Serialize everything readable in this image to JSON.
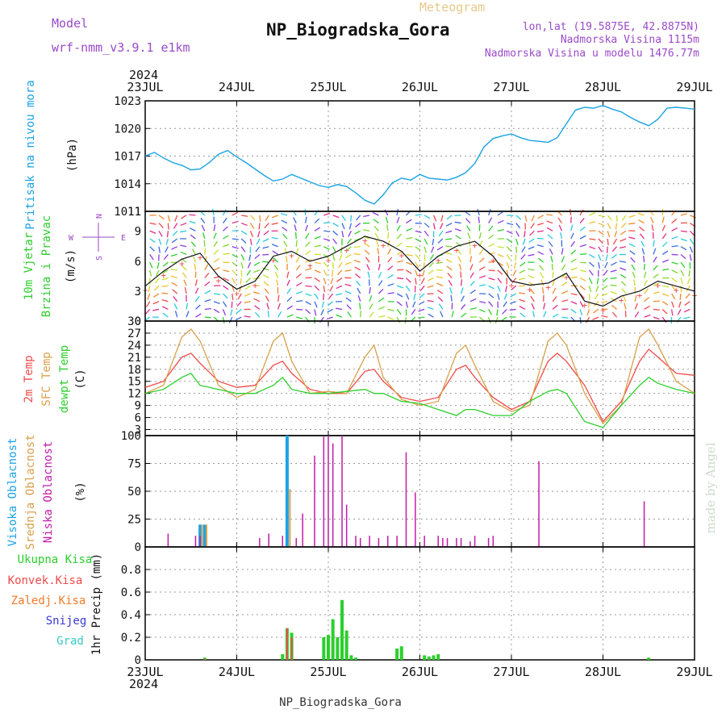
{
  "header": {
    "model_label": "Model",
    "model_value": "wrf-nmm_v3.9.1 e1km",
    "meteogram_label": "Meteogram",
    "station_title": "NP_Biogradska_Gora",
    "lonlat": "lon,lat (19.5875E, 42.8875N)",
    "elevation": "Nadmorska Visina 1115m",
    "model_elevation": "Nadmorska Visina u modelu 1476.77m",
    "footer_station": "NP_Biogradska_Gora",
    "watermark": "made by Angel",
    "year_top": "2024",
    "year_bottom": "2024"
  },
  "colors": {
    "pressure": "#1aa3e6",
    "temp2m": "#f04a4a",
    "sfc": "#d9a04a",
    "dewpt": "#2ccf2c",
    "high_cloud": "#1aa3e6",
    "mid_cloud": "#d9a04a",
    "low_cloud": "#c21ca8",
    "precip_total": "#2ccf2c",
    "precip_conv": "#f04a4a",
    "precip_frz": "#f07a2a",
    "snow": "#3a3ad6",
    "hail": "#38c8c8",
    "label_purple": "#9a4ac8"
  },
  "chart_data": [
    {
      "type": "line",
      "name": "pressure-panel",
      "ylabel_left": "Pritisak na nivou mora",
      "ylabel_unit": "(hPa)",
      "x_ticks": [
        "23JUL",
        "24JUL",
        "25JUL",
        "26JUL",
        "27JUL",
        "28JUL",
        "29JUL"
      ],
      "ylim": [
        1011,
        1023
      ],
      "yticks": [
        1011,
        1014,
        1017,
        1020,
        1023
      ],
      "series": [
        {
          "x": [
            0,
            0.1,
            0.2,
            0.3,
            0.4,
            0.5,
            0.6,
            0.7,
            0.8,
            0.9,
            1.0,
            1.1,
            1.2,
            1.3,
            1.4,
            1.5,
            1.6,
            1.7,
            1.8,
            1.9,
            2.0,
            2.1,
            2.2,
            2.3,
            2.4,
            2.5,
            2.6,
            2.7,
            2.8,
            2.9,
            3.0,
            3.1,
            3.2,
            3.3,
            3.4,
            3.5,
            3.6,
            3.7,
            3.8,
            3.9,
            4.0,
            4.1,
            4.2,
            4.3,
            4.4,
            4.5,
            4.6,
            4.7,
            4.8,
            4.9,
            5.0,
            5.1,
            5.2,
            5.3,
            5.4,
            5.5,
            5.6,
            5.7,
            5.8,
            5.9,
            6.0
          ],
          "values": [
            1017,
            1017.4,
            1016.8,
            1016.3,
            1016.0,
            1015.5,
            1015.6,
            1016.3,
            1017.2,
            1017.6,
            1016.9,
            1016.3,
            1015.6,
            1014.9,
            1014.3,
            1014.5,
            1015.0,
            1014.6,
            1014.2,
            1013.8,
            1013.6,
            1013.9,
            1013.7,
            1013.0,
            1012.2,
            1011.8,
            1012.8,
            1014.1,
            1014.6,
            1014.4,
            1015.0,
            1014.6,
            1014.5,
            1014.4,
            1014.7,
            1015.2,
            1016.2,
            1018.0,
            1018.9,
            1019.2,
            1019.4,
            1019.0,
            1018.7,
            1018.6,
            1018.5,
            1019.0,
            1020.5,
            1022.0,
            1022.3,
            1022.2,
            1022.5,
            1022.1,
            1021.8,
            1021.2,
            1020.7,
            1020.3,
            1021.0,
            1022.2,
            1022.3,
            1022.2,
            1022.1
          ]
        }
      ]
    },
    {
      "type": "line",
      "name": "wind-panel",
      "ylabel_left": "10m Vjetar Brzina i Pravac",
      "ylabel_unit": "(m/s)",
      "compass": {
        "n": "N",
        "s": "S",
        "e": "E",
        "w": "W"
      },
      "ylim": [
        0,
        11
      ],
      "yticks": [
        0,
        3,
        6,
        9,
        11
      ],
      "series": [
        {
          "x": [
            0,
            0.2,
            0.4,
            0.6,
            0.8,
            1.0,
            1.2,
            1.4,
            1.6,
            1.8,
            2.0,
            2.2,
            2.4,
            2.6,
            2.8,
            3.0,
            3.2,
            3.4,
            3.6,
            3.8,
            4.0,
            4.2,
            4.4,
            4.6,
            4.8,
            5.0,
            5.2,
            5.4,
            5.6,
            5.8,
            6.0
          ],
          "values": [
            3.5,
            5.0,
            6.2,
            6.8,
            4.5,
            3.2,
            4.0,
            6.5,
            7.0,
            6.0,
            6.5,
            7.5,
            8.5,
            8.0,
            7.0,
            5.0,
            6.5,
            7.5,
            8.0,
            6.5,
            4.0,
            3.6,
            3.8,
            4.8,
            2.0,
            1.5,
            2.5,
            3.0,
            4.0,
            3.5,
            3.0
          ]
        }
      ]
    },
    {
      "type": "line",
      "name": "temperature-panel",
      "series_names": [
        "2m Temp",
        "SFC Temp",
        "dewpt Temp"
      ],
      "ylabel_unit": "(C)",
      "ylim": [
        1.5,
        30
      ],
      "yticks": [
        3,
        6,
        9,
        12,
        15,
        18,
        21,
        24,
        27,
        30
      ],
      "series": [
        {
          "name": "2m Temp",
          "x": [
            0,
            0.2,
            0.4,
            0.5,
            0.6,
            0.8,
            1.0,
            1.2,
            1.4,
            1.5,
            1.6,
            1.8,
            2.0,
            2.2,
            2.4,
            2.5,
            2.6,
            2.8,
            3.0,
            3.2,
            3.4,
            3.5,
            3.6,
            3.8,
            4.0,
            4.2,
            4.4,
            4.5,
            4.6,
            4.8,
            5.0,
            5.2,
            5.4,
            5.5,
            5.6,
            5.8,
            6.0
          ],
          "values": [
            13.5,
            15.0,
            21.0,
            22.0,
            19.5,
            15.0,
            13.5,
            14.0,
            19.0,
            20.0,
            17.0,
            13.0,
            12.0,
            12.0,
            17.5,
            18.0,
            15.0,
            11.0,
            10.0,
            11.0,
            18.0,
            19.0,
            16.0,
            11.0,
            8.0,
            10.0,
            20.0,
            22.0,
            20.0,
            14.0,
            5.0,
            10.0,
            20.0,
            23.0,
            21.0,
            17.0,
            16.5
          ]
        },
        {
          "name": "SFC Temp",
          "x": [
            0,
            0.2,
            0.4,
            0.5,
            0.6,
            0.8,
            1.0,
            1.2,
            1.4,
            1.5,
            1.6,
            1.8,
            2.0,
            2.2,
            2.4,
            2.5,
            2.6,
            2.8,
            3.0,
            3.2,
            3.4,
            3.5,
            3.6,
            3.8,
            4.0,
            4.2,
            4.4,
            4.5,
            4.6,
            4.8,
            5.0,
            5.2,
            5.4,
            5.5,
            5.6,
            5.8,
            6.0
          ],
          "values": [
            12.0,
            14.0,
            26.0,
            28.0,
            25.0,
            14.0,
            11.0,
            13.0,
            25.0,
            27.0,
            20.0,
            12.0,
            12.5,
            12.0,
            21.0,
            24.0,
            16.0,
            10.5,
            9.0,
            10.0,
            22.0,
            24.0,
            19.0,
            10.0,
            7.5,
            9.0,
            25.0,
            27.0,
            24.0,
            12.0,
            4.5,
            9.0,
            26.0,
            28.0,
            24.0,
            15.0,
            12.0
          ]
        },
        {
          "name": "dewpt Temp",
          "x": [
            0,
            0.2,
            0.4,
            0.5,
            0.6,
            0.8,
            1.0,
            1.2,
            1.4,
            1.5,
            1.6,
            1.8,
            2.0,
            2.2,
            2.4,
            2.5,
            2.6,
            2.8,
            3.0,
            3.2,
            3.4,
            3.5,
            3.6,
            3.8,
            4.0,
            4.2,
            4.4,
            4.5,
            4.6,
            4.8,
            5.0,
            5.2,
            5.4,
            5.5,
            5.6,
            5.8,
            6.0
          ],
          "values": [
            12.0,
            13.0,
            16.0,
            17.0,
            14.0,
            13.0,
            12.0,
            12.0,
            14.0,
            16.0,
            13.0,
            12.0,
            12.0,
            12.5,
            13.0,
            12.0,
            12.0,
            10.0,
            9.5,
            8.0,
            6.5,
            8.0,
            8.0,
            6.5,
            6.5,
            10.0,
            12.5,
            13.0,
            12.0,
            5.0,
            3.5,
            9.0,
            14.0,
            16.0,
            14.5,
            13.0,
            12.0
          ]
        }
      ]
    },
    {
      "type": "bar",
      "name": "cloud-panel",
      "series_names": [
        "Visoka Oblacnost",
        "Srednja Oblacnost",
        "Niska Oblacnost"
      ],
      "ylabel_unit": "(%)",
      "ylim": [
        0,
        100
      ],
      "yticks": [
        0,
        25,
        50,
        75,
        100
      ],
      "series": [
        {
          "name": "Visoka Oblacnost",
          "x": [
            0.6,
            0.65,
            1.55
          ],
          "values": [
            20,
            20,
            100
          ]
        },
        {
          "name": "Srednja Oblacnost",
          "x": [
            0.62,
            0.67,
            1.58
          ],
          "values": [
            20,
            20,
            52
          ]
        },
        {
          "name": "Niska Oblacnost",
          "x": [
            0.25,
            0.55,
            0.6,
            1.25,
            1.35,
            1.5,
            1.65,
            1.72,
            1.85,
            1.95,
            2.0,
            2.05,
            2.15,
            2.2,
            2.3,
            2.35,
            2.45,
            2.55,
            2.65,
            2.75,
            2.85,
            2.95,
            3.05,
            3.2,
            3.25,
            3.3,
            3.4,
            3.45,
            3.55,
            3.6,
            3.75,
            3.8,
            4.3,
            5.45,
            5.55
          ],
          "values": [
            12,
            10,
            10,
            8,
            12,
            10,
            8,
            30,
            82,
            99,
            100,
            93,
            100,
            38,
            10,
            8,
            10,
            8,
            10,
            10,
            85,
            49,
            10,
            10,
            8,
            8,
            8,
            8,
            5,
            10,
            8,
            10,
            77,
            41,
            0
          ]
        }
      ]
    },
    {
      "type": "bar",
      "name": "precip-panel",
      "series_names": [
        "Ukupna Kisa",
        "Konvek.Kisa",
        "Zaledj.Kisa",
        "Snijeg",
        "Grad"
      ],
      "ylabel_unit": "1hr Precip (mm)",
      "ylim": [
        0,
        1.0
      ],
      "yticks": [
        0,
        0.2,
        0.4,
        0.6,
        0.8
      ],
      "series": [
        {
          "name": "Ukupna Kisa",
          "x": [
            0.65,
            1.5,
            1.55,
            1.6,
            1.95,
            2.0,
            2.05,
            2.1,
            2.15,
            2.2,
            2.25,
            2.3,
            2.75,
            2.8,
            3.05,
            3.1,
            3.15,
            3.2,
            5.5
          ],
          "values": [
            0.02,
            0.05,
            0.28,
            0.24,
            0.2,
            0.22,
            0.36,
            0.2,
            0.53,
            0.26,
            0.04,
            0.02,
            0.1,
            0.12,
            0.04,
            0.03,
            0.04,
            0.05,
            0.02
          ]
        },
        {
          "name": "Konvek.Kisa",
          "x": [
            0.65,
            1.55,
            1.6
          ],
          "values": [
            0.01,
            0.28,
            0.2
          ]
        }
      ]
    }
  ]
}
